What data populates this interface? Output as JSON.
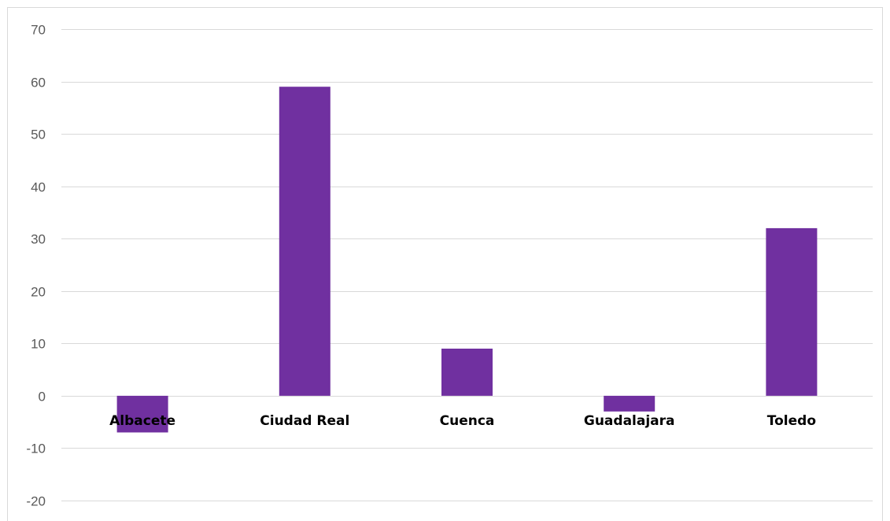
{
  "chart_data": {
    "type": "bar",
    "categories": [
      "Albacete",
      "Ciudad Real",
      "Cuenca",
      "Guadalajara",
      "Toledo"
    ],
    "values": [
      -7,
      59,
      9,
      -3,
      32
    ],
    "ylim": [
      -20,
      70
    ],
    "yticks": [
      70,
      60,
      50,
      40,
      30,
      20,
      10,
      0,
      -10,
      -20
    ],
    "ytick_labels": [
      "70",
      "60",
      "50",
      "40",
      "30",
      "20",
      "10",
      "0",
      "-10",
      "-20"
    ],
    "grid": true,
    "bar_color": "#7030a0",
    "gridline_color": "#d9d9d9",
    "title": "",
    "xlabel": "",
    "ylabel": ""
  }
}
